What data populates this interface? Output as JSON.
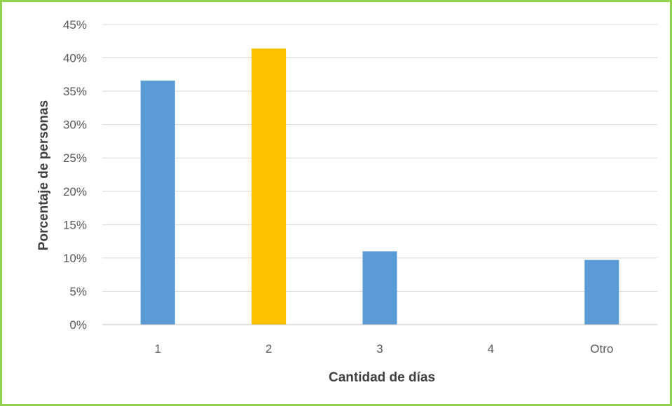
{
  "chart_data": {
    "type": "bar",
    "title": "",
    "xlabel": "Cantidad de días",
    "ylabel": "Porcentaje de personas",
    "categories": [
      "1",
      "2",
      "3",
      "4",
      "Otro"
    ],
    "values": [
      0.366,
      0.414,
      0.11,
      0,
      0.097
    ],
    "bar_colors": [
      "#5B9BD5",
      "#FFC000",
      "#5B9BD5",
      "#5B9BD5",
      "#5B9BD5"
    ],
    "ylim": [
      0,
      0.45
    ],
    "yticks": [
      0,
      0.05,
      0.1,
      0.15,
      0.2,
      0.25,
      0.3,
      0.35,
      0.4,
      0.45
    ],
    "ytick_labels": [
      "0%",
      "5%",
      "10%",
      "15%",
      "20%",
      "25%",
      "30%",
      "35%",
      "40%",
      "45%"
    ],
    "grid": "horizontal",
    "legend": "none"
  },
  "colors": {
    "frame_border": "#92D050",
    "gridline": "#D9D9D9",
    "axis_line": "#BFBFBF",
    "tick_text": "#595959",
    "axis_title_text": "#404040"
  }
}
